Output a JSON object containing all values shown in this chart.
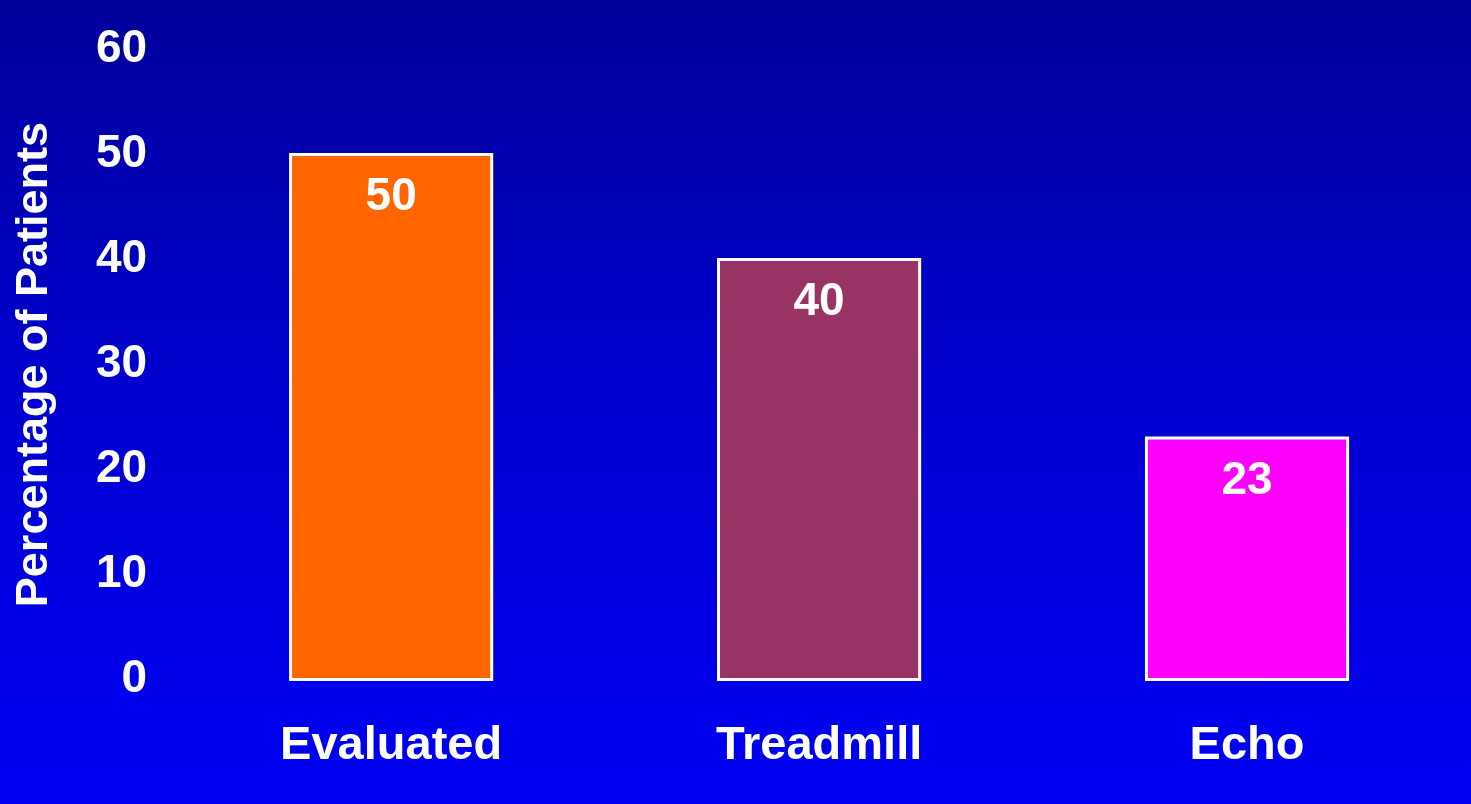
{
  "chart_data": {
    "type": "bar",
    "ylabel": "Percentage of Patients",
    "categories": [
      "Evaluated",
      "Treadmill",
      "Echo"
    ],
    "values": [
      50,
      40,
      23
    ],
    "colors": [
      "#ff6600",
      "#993366",
      "#ff00ff"
    ],
    "ylim": [
      0,
      60
    ],
    "yticks": [
      0,
      10,
      20,
      30,
      40,
      50,
      60
    ],
    "data_labels": true
  }
}
